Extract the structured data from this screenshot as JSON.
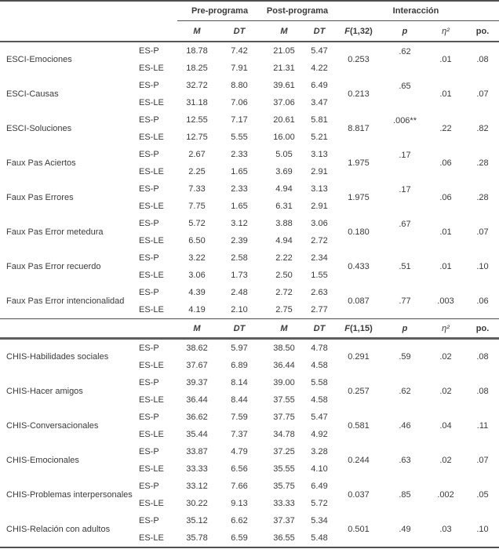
{
  "header": {
    "pre_label": "Pre-programa",
    "post_label": "Post-programa",
    "interaction_label": "Interacción",
    "m": "M",
    "dt": "DT",
    "p": "p",
    "eta": "η²",
    "po": "po."
  },
  "chart_data": {
    "type": "table",
    "note": "Repeated-measures comparison table, pre/post program by group ES-P vs ES-LE"
  },
  "sections": [
    {
      "f_stat": {
        "sym": "F",
        "args": "(1,32)"
      },
      "rows": [
        {
          "label": "ESCI-Emociones",
          "p_raised": true,
          "groups": [
            {
              "name": "ES-P",
              "m1": "18.78",
              "dt1": "7.42",
              "m2": "21.05",
              "dt2": "5.47"
            },
            {
              "name": "ES-LE",
              "m1": "18.25",
              "dt1": "7.91",
              "m2": "21.31",
              "dt2": "4.22"
            }
          ],
          "f": "0.253",
          "p": ".62",
          "eta": ".01",
          "po": ".08"
        },
        {
          "label": "ESCI-Causas",
          "p_raised": true,
          "groups": [
            {
              "name": "ES-P",
              "m1": "32.72",
              "dt1": "8.80",
              "m2": "39.61",
              "dt2": "6.49"
            },
            {
              "name": "ES-LE",
              "m1": "31.18",
              "dt1": "7.06",
              "m2": "37.06",
              "dt2": "3.47"
            }
          ],
          "f": "0.213",
          "p": ".65",
          "eta": ".01",
          "po": ".07"
        },
        {
          "label": "ESCI-Soluciones",
          "p_raised": true,
          "groups": [
            {
              "name": "ES-P",
              "m1": "12.55",
              "dt1": "7.17",
              "m2": "20.61",
              "dt2": "5.81"
            },
            {
              "name": "ES-LE",
              "m1": "12.75",
              "dt1": "5.55",
              "m2": "16.00",
              "dt2": "5.21"
            }
          ],
          "f": "8.817",
          "p": ".006**",
          "eta": ".22",
          "po": ".82"
        },
        {
          "label": "Faux Pas Aciertos",
          "p_raised": true,
          "groups": [
            {
              "name": "ES-P",
              "m1": "2.67",
              "dt1": "2.33",
              "m2": "5.05",
              "dt2": "3.13"
            },
            {
              "name": "ES-LE",
              "m1": "2.25",
              "dt1": "1.65",
              "m2": "3.69",
              "dt2": "2.91"
            }
          ],
          "f": "1.975",
          "p": ".17",
          "eta": ".06",
          "po": ".28"
        },
        {
          "label": "Faux Pas Errores",
          "p_raised": true,
          "groups": [
            {
              "name": "ES-P",
              "m1": "7.33",
              "dt1": "2.33",
              "m2": "4.94",
              "dt2": "3.13"
            },
            {
              "name": "ES-LE",
              "m1": "7.75",
              "dt1": "1.65",
              "m2": "6.31",
              "dt2": "2.91"
            }
          ],
          "f": "1.975",
          "p": ".17",
          "eta": ".06",
          "po": ".28"
        },
        {
          "label": "Faux Pas Error metedura",
          "p_raised": true,
          "groups": [
            {
              "name": "ES-P",
              "m1": "5.72",
              "dt1": "3.12",
              "m2": "3.88",
              "dt2": "3.06"
            },
            {
              "name": "ES-LE",
              "m1": "6.50",
              "dt1": "2.39",
              "m2": "4.94",
              "dt2": "2.72"
            }
          ],
          "f": "0.180",
          "p": ".67",
          "eta": ".01",
          "po": ".07"
        },
        {
          "label": "Faux Pas Error recuerdo",
          "p_raised": false,
          "groups": [
            {
              "name": "ES-P",
              "m1": "3.22",
              "dt1": "2.58",
              "m2": "2.22",
              "dt2": "2.34"
            },
            {
              "name": "ES-LE",
              "m1": "3.06",
              "dt1": "1.73",
              "m2": "2.50",
              "dt2": "1.55"
            }
          ],
          "f": "0.433",
          "p": ".51",
          "eta": ".01",
          "po": ".10"
        },
        {
          "label": "Faux Pas Error intencionalidad",
          "p_raised": false,
          "groups": [
            {
              "name": "ES-P",
              "m1": "4.39",
              "dt1": "2.48",
              "m2": "2.72",
              "dt2": "2.63"
            },
            {
              "name": "ES-LE",
              "m1": "4.19",
              "dt1": "2.10",
              "m2": "2.75",
              "dt2": "2.77"
            }
          ],
          "f": "0.087",
          "p": ".77",
          "eta": ".003",
          "po": ".06"
        }
      ]
    },
    {
      "f_stat": {
        "sym": "F",
        "args": "(1,15)"
      },
      "rows": [
        {
          "label": "CHIS-Habilidades sociales",
          "p_raised": false,
          "groups": [
            {
              "name": "ES-P",
              "m1": "38.62",
              "dt1": "5.97",
              "m2": "38.50",
              "dt2": "4.78"
            },
            {
              "name": "ES-LE",
              "m1": "37.67",
              "dt1": "6.89",
              "m2": "36.44",
              "dt2": "4.58"
            }
          ],
          "f": "0.291",
          "p": ".59",
          "eta": ".02",
          "po": ".08"
        },
        {
          "label": "CHIS-Hacer amigos",
          "p_raised": false,
          "groups": [
            {
              "name": "ES-P",
              "m1": "39.37",
              "dt1": "8.14",
              "m2": "39.00",
              "dt2": "5.58"
            },
            {
              "name": "ES-LE",
              "m1": "36.44",
              "dt1": "8.44",
              "m2": "37.55",
              "dt2": "4.58"
            }
          ],
          "f": "0.257",
          "p": ".62",
          "eta": ".02",
          "po": ".08"
        },
        {
          "label": "CHIS-Conversacionales",
          "p_raised": false,
          "groups": [
            {
              "name": "ES-P",
              "m1": "36.62",
              "dt1": "7.59",
              "m2": "37.75",
              "dt2": "5.47"
            },
            {
              "name": "ES-LE",
              "m1": "35.44",
              "dt1": "7.37",
              "m2": "34.78",
              "dt2": "4.92"
            }
          ],
          "f": "0.581",
          "p": ".46",
          "eta": ".04",
          "po": ".11"
        },
        {
          "label": "CHIS-Emocionales",
          "p_raised": false,
          "groups": [
            {
              "name": "ES-P",
              "m1": "33.87",
              "dt1": "4.79",
              "m2": "37.25",
              "dt2": "3.28"
            },
            {
              "name": "ES-LE",
              "m1": "33.33",
              "dt1": "6.56",
              "m2": "35.55",
              "dt2": "4.10"
            }
          ],
          "f": "0.244",
          "p": ".63",
          "eta": ".02",
          "po": ".07"
        },
        {
          "label": "CHIS-Problemas interpersonales",
          "p_raised": false,
          "groups": [
            {
              "name": "ES-P",
              "m1": "33.12",
              "dt1": "7.66",
              "m2": "35.75",
              "dt2": "6.49"
            },
            {
              "name": "ES-LE",
              "m1": "30.22",
              "dt1": "9.13",
              "m2": "33.33",
              "dt2": "5.72"
            }
          ],
          "f": "0.037",
          "p": ".85",
          "eta": ".002",
          "po": ".05"
        },
        {
          "label": "CHIS-Relación con adultos",
          "p_raised": false,
          "groups": [
            {
              "name": "ES-P",
              "m1": "35.12",
              "dt1": "6.62",
              "m2": "37.37",
              "dt2": "5.34"
            },
            {
              "name": "ES-LE",
              "m1": "35.78",
              "dt1": "6.59",
              "m2": "36.55",
              "dt2": "5.48"
            }
          ],
          "f": "0.501",
          "p": ".49",
          "eta": ".03",
          "po": ".10"
        }
      ]
    }
  ]
}
